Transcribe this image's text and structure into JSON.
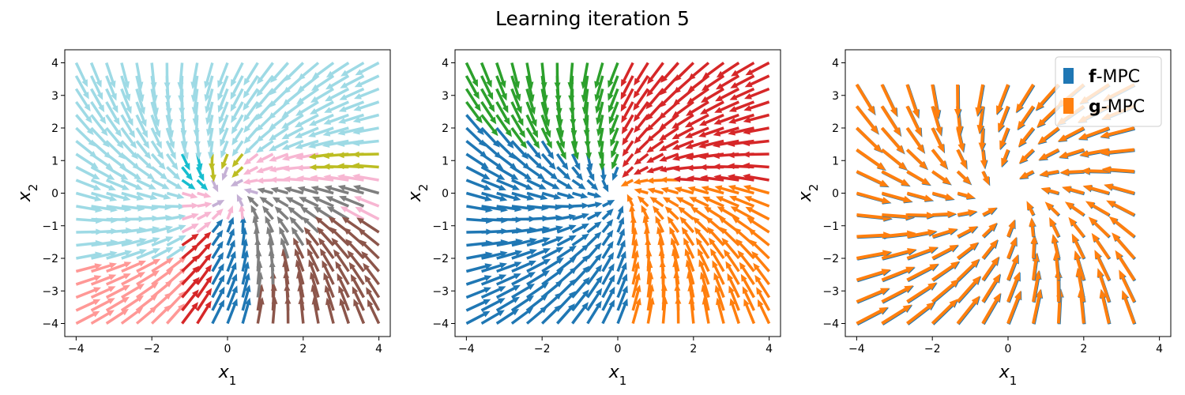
{
  "figure": {
    "title": "Learning iteration 5"
  },
  "chart_data": [
    {
      "type": "quiver",
      "panel": "left",
      "xlabel": "x1",
      "ylabel": "x2",
      "xlim": [
        -4.3,
        4.3
      ],
      "ylim": [
        -4.4,
        4.4
      ],
      "xticks": [
        -4,
        -2,
        0,
        2,
        4
      ],
      "yticks": [
        -4,
        -3,
        -2,
        -1,
        0,
        1,
        2,
        3,
        4
      ],
      "grid": false,
      "grid_spacing": 0.4,
      "coloring": "many regions (tab20 palette)",
      "palette": [
        "#9edae5",
        "#17becf",
        "#bcbd22",
        "#f7b6d2",
        "#7f7f7f",
        "#8c564b",
        "#c5b0d5",
        "#1f77b4",
        "#aec7e8",
        "#d62728",
        "#ff9896",
        "#ffbb78",
        "#98df8a",
        "#2ca02c",
        "#e377c2",
        "#c49c94",
        "#dbdb8d"
      ]
    },
    {
      "type": "quiver",
      "panel": "middle",
      "xlabel": "x1",
      "ylabel": "x2",
      "xlim": [
        -4.3,
        4.3
      ],
      "ylim": [
        -4.4,
        4.4
      ],
      "xticks": [
        -4,
        -2,
        0,
        2,
        4
      ],
      "yticks": [
        -4,
        -3,
        -2,
        -1,
        0,
        1,
        2,
        3,
        4
      ],
      "grid": false,
      "grid_spacing": 0.4,
      "coloring": "four regions",
      "palette": [
        "#1f77b4",
        "#ff7f0e",
        "#2ca02c",
        "#d62728"
      ]
    },
    {
      "type": "quiver",
      "panel": "right",
      "xlabel": "x1",
      "ylabel": "x2",
      "xlim": [
        -4.3,
        4.3
      ],
      "ylim": [
        -4.4,
        4.4
      ],
      "xticks": [
        -4,
        -2,
        0,
        2,
        4
      ],
      "yticks": [
        -4,
        -3,
        -2,
        -1,
        0,
        1,
        2,
        3,
        4
      ],
      "grid": false,
      "grid_spacing": 0.6667,
      "legend": {
        "position": "upper right",
        "entries": [
          {
            "bold": "f",
            "suffix": "-MPC",
            "color": "#1f77b4"
          },
          {
            "bold": "g",
            "suffix": "-MPC",
            "color": "#ff7f0e"
          }
        ]
      }
    }
  ]
}
